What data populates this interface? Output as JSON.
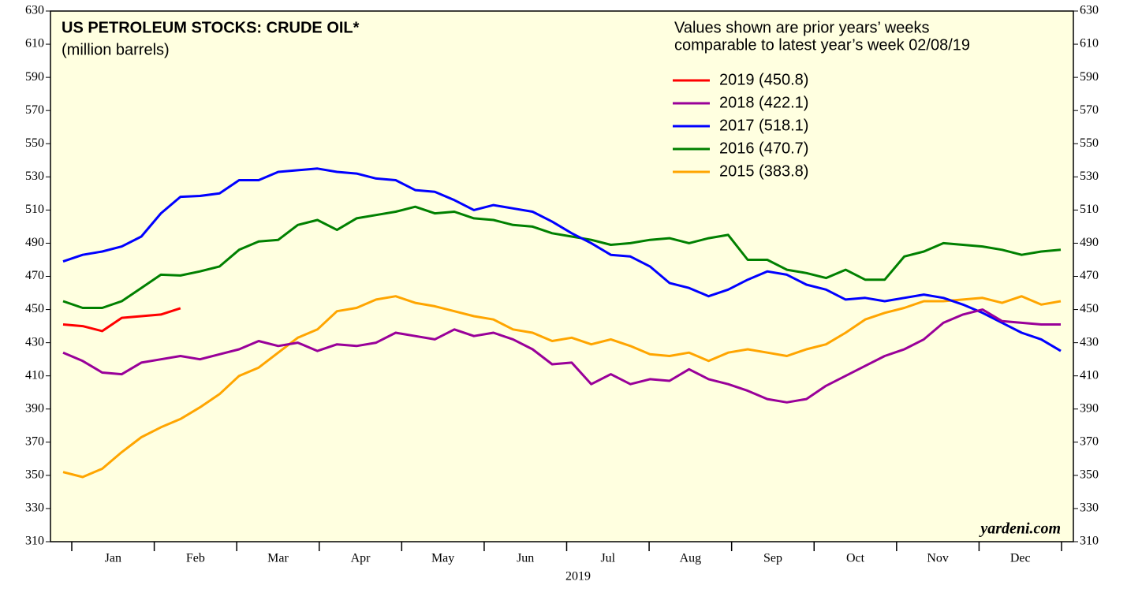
{
  "chart_data": {
    "type": "line",
    "title": "US PETROLEUM STOCKS: CRUDE OIL*",
    "subtitle": "(million barrels)",
    "annotation": "Values shown are prior years’ weeks\ncomparable to latest year’s week 02/08/19",
    "watermark": "yardeni.com",
    "xlabel": "2019",
    "months": [
      "Jan",
      "Feb",
      "Mar",
      "Apr",
      "May",
      "Jun",
      "Jul",
      "Aug",
      "Sep",
      "Oct",
      "Nov",
      "Dec"
    ],
    "ylim": [
      310,
      630
    ],
    "yticks": [
      310,
      330,
      350,
      370,
      390,
      410,
      430,
      450,
      470,
      490,
      510,
      530,
      550,
      570,
      590,
      610,
      630
    ],
    "legend": "upper right",
    "series": [
      {
        "name": "2019 (450.8)",
        "color": "#ff0000",
        "values": [
          441,
          440,
          437,
          445,
          446,
          447,
          450.8
        ]
      },
      {
        "name": "2018 (422.1)",
        "color": "#990099",
        "values": [
          424,
          419,
          412,
          411,
          418,
          420,
          422,
          420,
          423,
          426,
          431,
          428,
          430,
          425,
          429,
          428,
          430,
          436,
          434,
          432,
          438,
          434,
          436,
          432,
          426,
          417,
          418,
          405,
          411,
          405,
          408,
          407,
          414,
          408,
          405,
          401,
          396,
          394,
          396,
          404,
          410,
          416,
          422,
          426,
          432,
          442,
          447,
          450,
          443,
          442,
          441,
          441
        ]
      },
      {
        "name": "2017 (518.1)",
        "color": "#0000ff",
        "values": [
          479,
          483,
          485,
          488,
          494,
          508,
          518,
          518.5,
          520,
          528,
          528,
          533,
          534,
          535,
          533,
          532,
          529,
          528,
          522,
          521,
          516,
          510,
          513,
          511,
          509,
          503,
          496,
          490,
          483,
          482,
          476,
          466,
          463,
          458,
          462,
          468,
          473,
          471,
          465,
          462,
          456,
          457,
          455,
          457,
          459,
          457,
          453,
          448,
          442,
          436,
          432,
          425
        ]
      },
      {
        "name": "2016 (470.7)",
        "color": "#008000",
        "values": [
          455,
          451,
          451,
          455,
          463,
          471,
          470.5,
          473,
          476,
          486,
          491,
          492,
          501,
          504,
          498,
          505,
          507,
          509,
          512,
          508,
          509,
          505,
          504,
          501,
          500,
          496,
          494,
          492,
          489,
          490,
          492,
          493,
          490,
          493,
          495,
          480,
          480,
          474,
          472,
          469,
          474,
          468,
          468,
          482,
          485,
          490,
          489,
          488,
          486,
          483,
          485,
          486
        ]
      },
      {
        "name": "2015 (383.8)",
        "color": "#ffa500",
        "values": [
          352,
          349,
          354,
          364,
          373,
          379,
          384,
          391,
          399,
          410,
          415,
          424,
          433,
          438,
          449,
          451,
          456,
          458,
          454,
          452,
          449,
          446,
          444,
          438,
          436,
          431,
          433,
          429,
          432,
          428,
          423,
          422,
          424,
          419,
          424,
          426,
          424,
          422,
          426,
          429,
          436,
          444,
          448,
          451,
          455,
          455,
          456,
          457,
          454,
          458,
          453,
          455
        ]
      }
    ]
  }
}
